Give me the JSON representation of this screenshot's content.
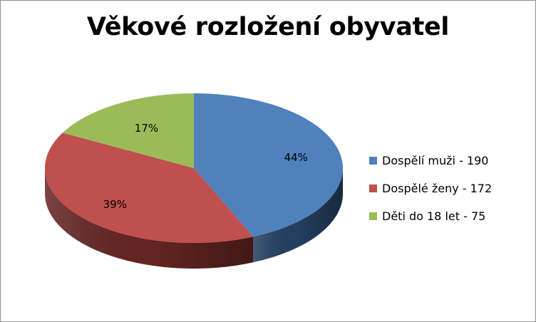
{
  "chart_data": {
    "type": "pie",
    "title": "Věkové rozložení obyvatel",
    "legend_position": "right",
    "slices": [
      {
        "label": "Dospělí muži - 190",
        "value": 190,
        "percent_label": "44%",
        "color": "#4f81bd",
        "side_color": "#243f60"
      },
      {
        "label": "Dospělé ženy - 172",
        "value": 172,
        "percent_label": "39%",
        "color": "#c0504d",
        "side_color": "#632523"
      },
      {
        "label": "Děti do 18 let - 75",
        "value": 75,
        "percent_label": "17%",
        "color": "#9bbb59",
        "side_color": "#4f6228"
      }
    ]
  }
}
